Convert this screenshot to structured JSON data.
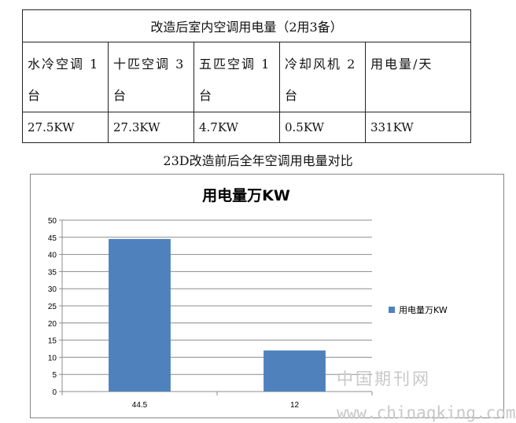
{
  "table": {
    "title": "改造后室内空调用电量（2用3备）",
    "headers": [
      "水冷空调1台",
      "十匹空调3台",
      "五匹空调1台",
      "冷却风机2台",
      "用电量/天"
    ],
    "header_lines": [
      [
        "水冷空调 1",
        "台"
      ],
      [
        "十匹空调 3",
        "台"
      ],
      [
        "五匹空调 1",
        "台"
      ],
      [
        "冷却风机 2",
        "台"
      ],
      [
        "用电量/天",
        ""
      ]
    ],
    "values": [
      "27.5KW",
      "27.3KW",
      "4.7KW",
      "0.5KW",
      "331KW"
    ]
  },
  "caption": "23D改造前后全年空调用电量对比",
  "chart_data": {
    "type": "bar",
    "title": "用电量万KW",
    "categories": [
      "44.5",
      "12"
    ],
    "series": [
      {
        "name": "用电量万KW",
        "values": [
          44.5,
          12
        ],
        "color": "#4f81bd"
      }
    ],
    "xlabel": "",
    "ylabel": "",
    "ylim": [
      0,
      50
    ],
    "yticks": [
      0,
      5,
      10,
      15,
      20,
      25,
      30,
      35,
      40,
      45,
      50
    ],
    "grid": true,
    "legend": "right"
  },
  "watermarks": [
    "中国期刊网",
    "www.chinaqking.com"
  ]
}
